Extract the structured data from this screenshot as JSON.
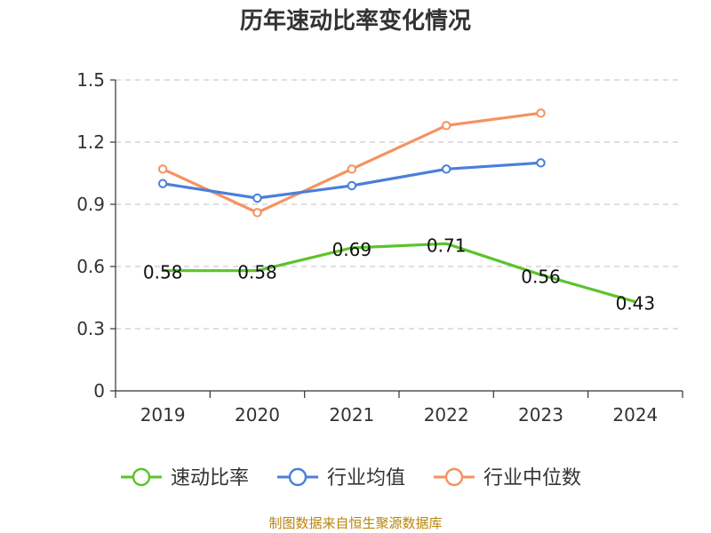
{
  "source": "制图数据来自恒生聚源数据库",
  "chart_data": {
    "type": "line",
    "title": "历年速动比率变化情况",
    "categories": [
      "2019",
      "2020",
      "2021",
      "2022",
      "2023",
      "2024"
    ],
    "ylim": [
      0,
      1.5
    ],
    "yticks": [
      "0",
      "0.3",
      "0.6",
      "0.9",
      "1.2",
      "1.5"
    ],
    "grid": true,
    "legend_position": "bottom",
    "series": [
      {
        "name": "速动比率",
        "color": "#5cc32b",
        "values": [
          0.58,
          0.58,
          0.69,
          0.71,
          0.56,
          0.43
        ],
        "labels": [
          "0.58",
          "0.58",
          "0.69",
          "0.71",
          "0.56",
          "0.43"
        ]
      },
      {
        "name": "行业均值",
        "color": "#4a7fd9",
        "values": [
          1.0,
          0.93,
          0.99,
          1.07,
          1.1,
          null
        ]
      },
      {
        "name": "行业中位数",
        "color": "#f59260",
        "values": [
          1.07,
          0.86,
          1.07,
          1.28,
          1.34,
          null
        ]
      }
    ]
  }
}
